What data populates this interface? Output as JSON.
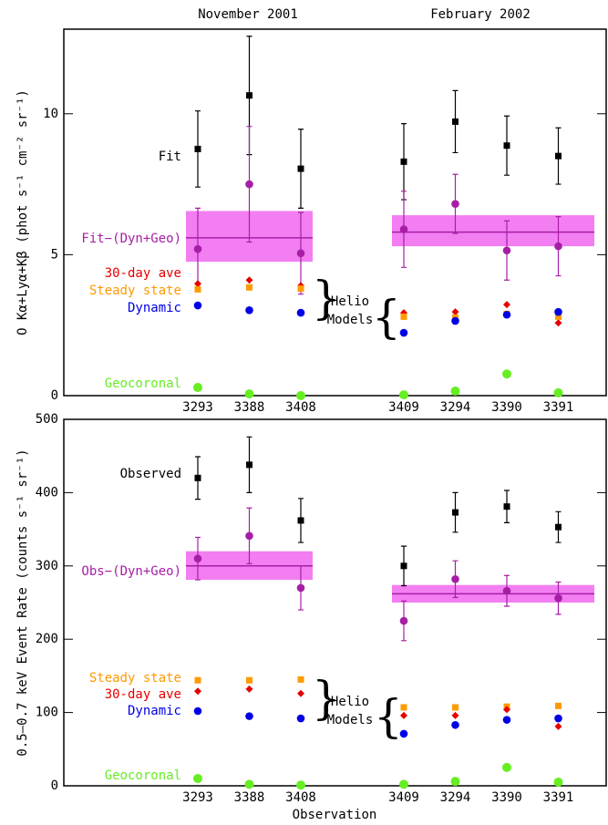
{
  "chart_data": [
    {
      "type": "point",
      "group_labels": [
        "November 2001",
        "February 2002"
      ],
      "ylabel": "O Kα+Lyα+Kβ (phot s⁻¹ cm⁻² sr⁻¹)",
      "categories": [
        "3293",
        "3388",
        "3408",
        null,
        "3409",
        "3294",
        "3390",
        "3391"
      ],
      "ylim": [
        0,
        13
      ],
      "yticks": [
        0,
        5,
        10
      ],
      "annotation": [
        "Helio",
        "Models"
      ],
      "band_color": "#f27ef2",
      "bands": [
        {
          "value": 5.6,
          "low": 4.75,
          "high": 6.55
        },
        {
          "value": 5.8,
          "low": 5.3,
          "high": 6.4
        }
      ],
      "series": [
        {
          "name": "Fit",
          "color": "#000000",
          "marker": "square",
          "values": [
            8.75,
            10.65,
            8.05,
            null,
            8.3,
            9.72,
            8.87,
            8.5
          ],
          "errors": [
            1.35,
            2.1,
            1.4,
            null,
            1.35,
            1.1,
            1.05,
            1.0
          ]
        },
        {
          "name": "Fit−(Dyn+Geo)",
          "color": "#a61ea6",
          "marker": "circle",
          "values": [
            5.2,
            7.5,
            5.05,
            null,
            5.9,
            6.8,
            5.15,
            5.3
          ],
          "errors": [
            1.45,
            2.05,
            1.45,
            null,
            1.35,
            1.05,
            1.05,
            1.05
          ]
        },
        {
          "name": "30-day ave",
          "color": "#e60000",
          "marker": "diamond",
          "values": [
            3.97,
            4.1,
            3.9,
            null,
            2.94,
            2.97,
            3.23,
            2.58
          ]
        },
        {
          "name": "Steady state",
          "color": "#ff9a00",
          "marker": "square",
          "values": [
            3.77,
            3.84,
            3.8,
            null,
            2.8,
            2.77,
            2.9,
            2.8
          ]
        },
        {
          "name": "Dynamic",
          "color": "#0000e6",
          "marker": "circle",
          "values": [
            3.2,
            3.03,
            2.94,
            null,
            2.23,
            2.65,
            2.87,
            2.97
          ]
        },
        {
          "name": "Geocoronal",
          "color": "#66ee22",
          "marker": "bigcircle",
          "values": [
            0.29,
            0.06,
            0.0,
            null,
            0.03,
            0.16,
            0.77,
            0.1
          ]
        }
      ]
    },
    {
      "type": "point",
      "ylabel": "0.5–0.7 keV Event Rate (counts s⁻¹ sr⁻¹)",
      "xlabel": "Observation",
      "categories": [
        "3293",
        "3388",
        "3408",
        null,
        "3409",
        "3294",
        "3390",
        "3391"
      ],
      "ylim": [
        0,
        500
      ],
      "yticks": [
        0,
        100,
        200,
        300,
        400,
        500
      ],
      "annotation": [
        "Helio",
        "Models"
      ],
      "band_color": "#f27ef2",
      "bands": [
        {
          "value": 300,
          "low": 281,
          "high": 320
        },
        {
          "value": 262,
          "low": 250,
          "high": 274
        }
      ],
      "series": [
        {
          "name": "Observed",
          "color": "#000000",
          "marker": "square",
          "values": [
            420,
            438,
            362,
            null,
            300,
            373,
            381,
            353
          ],
          "errors": [
            29,
            38,
            30,
            null,
            27,
            27,
            22,
            21
          ]
        },
        {
          "name": "Obs−(Dyn+Geo)",
          "color": "#a61ea6",
          "marker": "circle",
          "values": [
            310,
            341,
            270,
            null,
            225,
            282,
            266,
            256
          ],
          "errors": [
            29,
            38,
            30,
            null,
            27,
            25,
            21,
            22
          ]
        },
        {
          "name": "Steady state",
          "color": "#ff9a00",
          "marker": "square",
          "values": [
            144,
            144,
            145,
            null,
            107,
            107,
            108,
            109
          ]
        },
        {
          "name": "30-day ave",
          "color": "#e60000",
          "marker": "diamond",
          "values": [
            129,
            132,
            126,
            null,
            96,
            96,
            104,
            81
          ]
        },
        {
          "name": "Dynamic",
          "color": "#0000e6",
          "marker": "circle",
          "values": [
            102,
            95,
            92,
            null,
            71,
            83,
            90,
            92
          ]
        },
        {
          "name": "Geocoronal",
          "color": "#66ee22",
          "marker": "bigcircle",
          "values": [
            10,
            2,
            1,
            null,
            2,
            6,
            25,
            5
          ]
        }
      ]
    }
  ]
}
